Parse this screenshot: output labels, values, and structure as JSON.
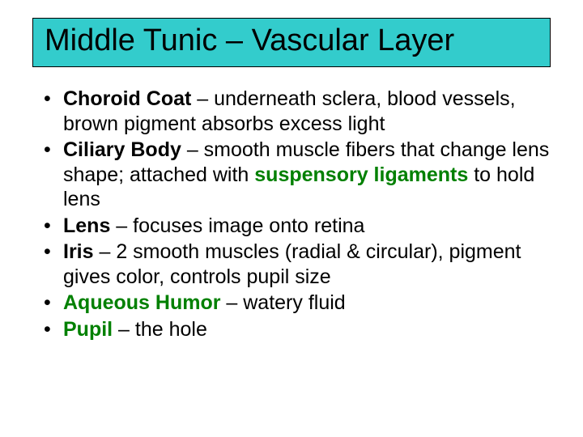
{
  "colors": {
    "title_bg": "#33cccc",
    "green": "#008000",
    "black": "#000000",
    "white": "#ffffff"
  },
  "title": "Middle Tunic – Vascular Layer",
  "bullets": [
    {
      "term": "Choroid Coat",
      "term_class": "term",
      "rest": " – underneath sclera, blood vessels, brown pigment absorbs excess light"
    },
    {
      "term": "Ciliary Body",
      "term_class": "term",
      "rest_pre": " – smooth muscle fibers that change lens shape; attached with ",
      "inline_term": "suspensory ligaments",
      "inline_class": "green-term",
      "rest_post": " to hold lens"
    },
    {
      "term": "Lens",
      "term_class": "term",
      "rest": " – focuses image onto retina"
    },
    {
      "term": "Iris",
      "term_class": "term",
      "rest": " – 2 smooth muscles (radial & circular), pigment gives color, controls pupil size"
    },
    {
      "term": "Aqueous Humor",
      "term_class": "green-term",
      "rest": " – watery fluid"
    },
    {
      "term": "Pupil",
      "term_class": "green-term",
      "rest": " – the hole"
    }
  ]
}
